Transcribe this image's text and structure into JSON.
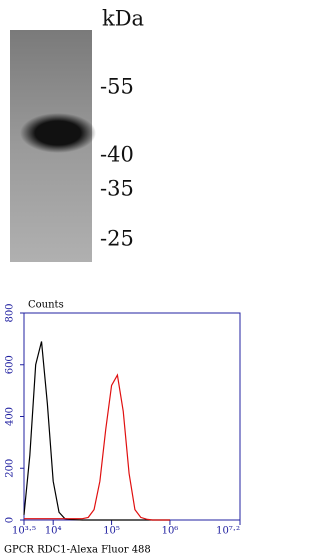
{
  "blot": {
    "unit": "kDa",
    "markers": [
      "-55",
      "-40",
      "-35",
      "-25"
    ]
  },
  "chart_data": {
    "type": "line",
    "y_label": "Counts",
    "x_label": "GPCR RDC1-Alexa Fluor 488",
    "x": [
      3162,
      3981,
      5012,
      6310,
      7943,
      10000,
      12589,
      15849,
      19953,
      25119,
      31623,
      39811,
      50119,
      63096,
      79433,
      100000,
      125893,
      158489,
      199526,
      251189,
      316228,
      398107,
      501187,
      630957,
      794328,
      1000000
    ],
    "series": [
      {
        "color": "#000000",
        "values": [
          20,
          250,
          600,
          690,
          450,
          150,
          30,
          5,
          2,
          1,
          0,
          0,
          0,
          0,
          0,
          0,
          0,
          0,
          0,
          0,
          0,
          0,
          0,
          0,
          0,
          0
        ]
      },
      {
        "color": "#e01010",
        "values": [
          5,
          5,
          5,
          5,
          5,
          5,
          5,
          5,
          5,
          5,
          5,
          10,
          40,
          150,
          350,
          520,
          560,
          420,
          180,
          40,
          10,
          3,
          0,
          0,
          0,
          0
        ]
      }
    ],
    "log_x": true,
    "xlim": [
      3162.28,
      15848932
    ],
    "xticks": [
      {
        "value": 3162.28,
        "label": "10³·⁵"
      },
      {
        "value": 10000,
        "label": "10⁴"
      },
      {
        "value": 100000,
        "label": "10⁵"
      },
      {
        "value": 1000000,
        "label": "10⁶"
      },
      {
        "value": 15848932,
        "label": "10⁷·²"
      }
    ],
    "ylim": [
      0,
      800
    ],
    "yticks": [
      0,
      200,
      400,
      600,
      800
    ],
    "axis_color": "#2020a0"
  }
}
